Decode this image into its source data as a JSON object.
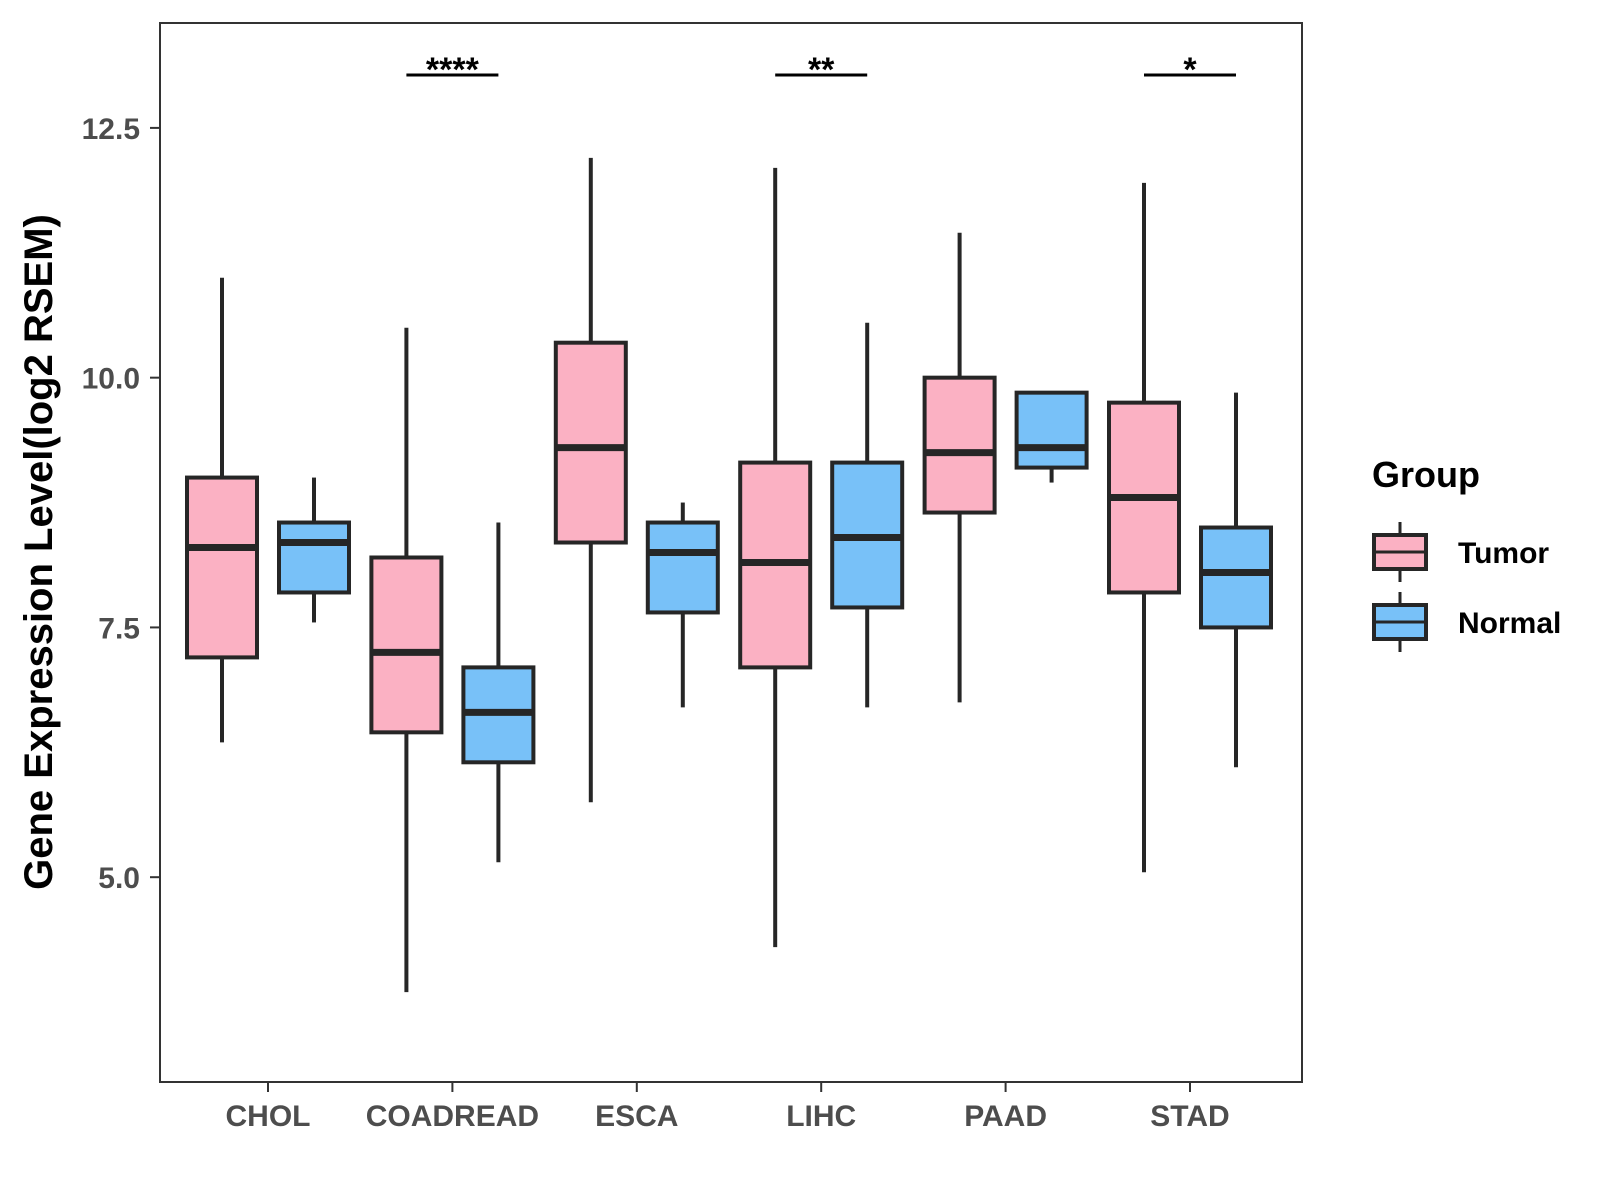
{
  "chart_data": {
    "type": "boxplot",
    "title": "",
    "xlabel": "",
    "ylabel": "Gene Expression Level(log2 RSEM)",
    "ylim": [
      2.95,
      13.55
    ],
    "yticks": [
      5.0,
      7.5,
      10.0,
      12.5
    ],
    "ytick_labels": [
      "5.0",
      "7.5",
      "10.0",
      "12.5"
    ],
    "categories": [
      "CHOL",
      "COADREAD",
      "ESCA",
      "LIHC",
      "PAAD",
      "STAD"
    ],
    "grid": false,
    "legend": {
      "title": "Group",
      "position": "right",
      "items": [
        {
          "name": "Tumor",
          "color": "#FBB1C3"
        },
        {
          "name": "Normal",
          "color": "#78C1F8"
        }
      ]
    },
    "series": [
      {
        "name": "Tumor",
        "color": "#FBB1C3",
        "boxes": [
          {
            "category": "CHOL",
            "whisker_low": 6.35,
            "q1": 7.2,
            "median": 8.3,
            "q3": 9.0,
            "whisker_high": 11.0
          },
          {
            "category": "COADREAD",
            "whisker_low": 3.85,
            "q1": 6.45,
            "median": 7.25,
            "q3": 8.2,
            "whisker_high": 10.5
          },
          {
            "category": "ESCA",
            "whisker_low": 5.75,
            "q1": 8.35,
            "median": 9.3,
            "q3": 10.35,
            "whisker_high": 12.2
          },
          {
            "category": "LIHC",
            "whisker_low": 4.3,
            "q1": 7.1,
            "median": 8.15,
            "q3": 9.15,
            "whisker_high": 12.1
          },
          {
            "category": "PAAD",
            "whisker_low": 6.75,
            "q1": 8.65,
            "median": 9.25,
            "q3": 10.0,
            "whisker_high": 11.45
          },
          {
            "category": "STAD",
            "whisker_low": 5.05,
            "q1": 7.85,
            "median": 8.8,
            "q3": 9.75,
            "whisker_high": 11.95
          }
        ]
      },
      {
        "name": "Normal",
        "color": "#78C1F8",
        "boxes": [
          {
            "category": "CHOL",
            "whisker_low": 7.55,
            "q1": 7.85,
            "median": 8.35,
            "q3": 8.55,
            "whisker_high": 9.0
          },
          {
            "category": "COADREAD",
            "whisker_low": 5.15,
            "q1": 6.15,
            "median": 6.65,
            "q3": 7.1,
            "whisker_high": 8.55
          },
          {
            "category": "ESCA",
            "whisker_low": 6.7,
            "q1": 7.65,
            "median": 8.25,
            "q3": 8.55,
            "whisker_high": 8.75
          },
          {
            "category": "LIHC",
            "whisker_low": 6.7,
            "q1": 7.7,
            "median": 8.4,
            "q3": 9.15,
            "whisker_high": 10.55
          },
          {
            "category": "PAAD",
            "whisker_low": 8.95,
            "q1": 9.1,
            "median": 9.3,
            "q3": 9.85,
            "whisker_high": 9.85
          },
          {
            "category": "STAD",
            "whisker_low": 6.1,
            "q1": 7.5,
            "median": 8.05,
            "q3": 8.5,
            "whisker_high": 9.85
          }
        ]
      }
    ],
    "annotations": [
      {
        "category": "COADREAD",
        "label": "****"
      },
      {
        "category": "LIHC",
        "label": "**"
      },
      {
        "category": "STAD",
        "label": "*"
      }
    ]
  }
}
